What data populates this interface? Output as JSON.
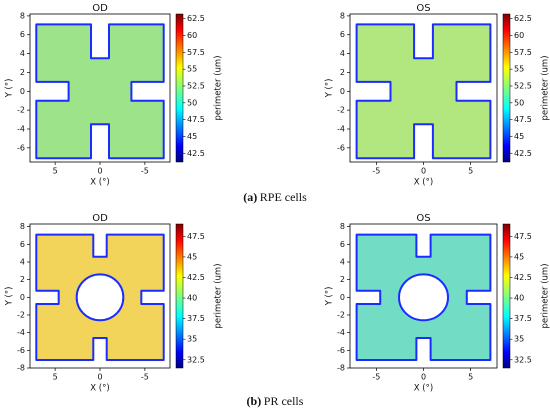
{
  "chart_data": [
    {
      "type": "heatmap",
      "title": "OD",
      "xlabel": "X (°)",
      "ylabel": "Y (°)",
      "xlim": [
        7.8,
        -7.8
      ],
      "ylim": [
        -7.5,
        8.2
      ],
      "xticks": [
        5,
        0,
        -5
      ],
      "yticks": [
        8,
        6,
        4,
        2,
        0,
        -2,
        -4,
        -6
      ],
      "shape": "notched",
      "color": "#9de38a",
      "edge_color": "#1a2cff",
      "colormap": "jet",
      "clim": [
        41.2,
        63.2
      ],
      "cticks": [
        42.5,
        45.0,
        47.5,
        50.0,
        52.5,
        55.0,
        57.5,
        60.0,
        62.5
      ],
      "clabel": "perimeter (um)"
    },
    {
      "type": "heatmap",
      "title": "OS",
      "xlabel": "X (°)",
      "ylabel": "Y (°)",
      "xlim": [
        -7.8,
        7.8
      ],
      "ylim": [
        -7.5,
        8.2
      ],
      "xticks": [
        -5,
        0,
        5
      ],
      "yticks": [
        8,
        6,
        4,
        2,
        0,
        -2,
        -4,
        -6
      ],
      "shape": "notched",
      "color": "#b2e67e",
      "edge_color": "#1a2cff",
      "colormap": "jet",
      "clim": [
        41.2,
        63.2
      ],
      "cticks": [
        42.5,
        45.0,
        47.5,
        50.0,
        52.5,
        55.0,
        57.5,
        60.0,
        62.5
      ],
      "clabel": "perimeter (um)"
    },
    {
      "type": "heatmap",
      "title": "OD",
      "xlabel": "X (°)",
      "ylabel": "Y (°)",
      "xlim": [
        7.8,
        -7.8
      ],
      "ylim": [
        -8,
        8.3
      ],
      "xticks": [
        5,
        0,
        -5
      ],
      "yticks": [
        8,
        6,
        4,
        2,
        0,
        -2,
        -4,
        -6,
        -8
      ],
      "shape": "ring",
      "color": "#f2d45a",
      "edge_color": "#1a2cff",
      "colormap": "jet",
      "clim": [
        31.5,
        49
      ],
      "cticks": [
        32.5,
        35.0,
        37.5,
        40.0,
        42.5,
        45.0,
        47.5
      ],
      "clabel": "perimeter (um)"
    },
    {
      "type": "heatmap",
      "title": "OS",
      "xlabel": "X (°)",
      "ylabel": "Y (°)",
      "xlim": [
        -7.8,
        7.8
      ],
      "ylim": [
        -8,
        8.3
      ],
      "xticks": [
        -5,
        0,
        5
      ],
      "yticks": [
        8,
        6,
        4,
        2,
        0,
        -2,
        -4,
        -6,
        -8
      ],
      "shape": "ring",
      "color": "#72dcc4",
      "edge_color": "#1a2cff",
      "colormap": "jet",
      "clim": [
        31.5,
        49
      ],
      "cticks": [
        32.5,
        35.0,
        37.5,
        40.0,
        42.5,
        45.0,
        47.5
      ],
      "clabel": "perimeter (um)"
    }
  ],
  "captions": [
    {
      "label": "(a)",
      "text": "RPE cells"
    },
    {
      "label": "(b)",
      "text": "PR cells"
    }
  ]
}
